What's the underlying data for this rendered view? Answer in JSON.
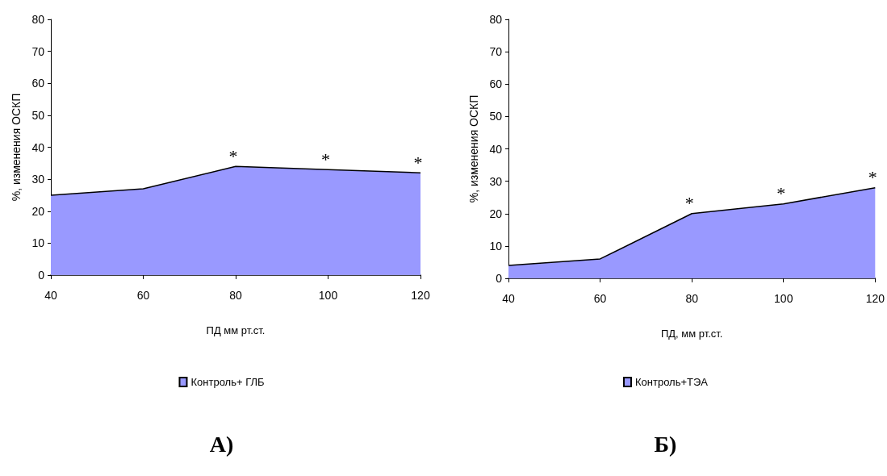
{
  "chart_data": [
    {
      "type": "area",
      "x": [
        40,
        60,
        80,
        100,
        120
      ],
      "xlim": [
        40,
        120
      ],
      "xticks": [
        40,
        60,
        80,
        100,
        120
      ],
      "ylim": [
        0,
        80
      ],
      "yticks": [
        0,
        10,
        20,
        30,
        40,
        50,
        60,
        70,
        80
      ],
      "xlabel": "ПД мм рт.ст.",
      "ylabel": "%, изменения ОСКП",
      "legend": "bottom",
      "grid": false,
      "series": [
        {
          "name": "Контроль+ ГЛБ",
          "color": "#9999ff",
          "values": [
            25,
            27,
            34,
            33,
            32
          ]
        }
      ],
      "annotations": [
        {
          "text": "*",
          "x": 80,
          "y": 34
        },
        {
          "text": "*",
          "x": 100,
          "y": 33
        },
        {
          "text": "*",
          "x": 120,
          "y": 32
        },
        "А)"
      ]
    },
    {
      "type": "area",
      "x": [
        40,
        60,
        80,
        100,
        120
      ],
      "xlim": [
        40,
        120
      ],
      "xticks": [
        40,
        60,
        80,
        100,
        120
      ],
      "ylim": [
        0,
        80
      ],
      "yticks": [
        0,
        10,
        20,
        30,
        40,
        50,
        60,
        70,
        80
      ],
      "xlabel": "ПД, мм рт.ст.",
      "ylabel": "%, изменения ОСКП",
      "legend": "bottom",
      "grid": false,
      "series": [
        {
          "name": "Контроль+ТЭА",
          "color": "#9999ff",
          "values": [
            4,
            6,
            20,
            23,
            28
          ]
        }
      ],
      "annotations": [
        {
          "text": "*",
          "x": 80,
          "y": 20
        },
        {
          "text": "*",
          "x": 100,
          "y": 23
        },
        {
          "text": "*",
          "x": 120,
          "y": 28
        },
        "Б)"
      ]
    }
  ]
}
